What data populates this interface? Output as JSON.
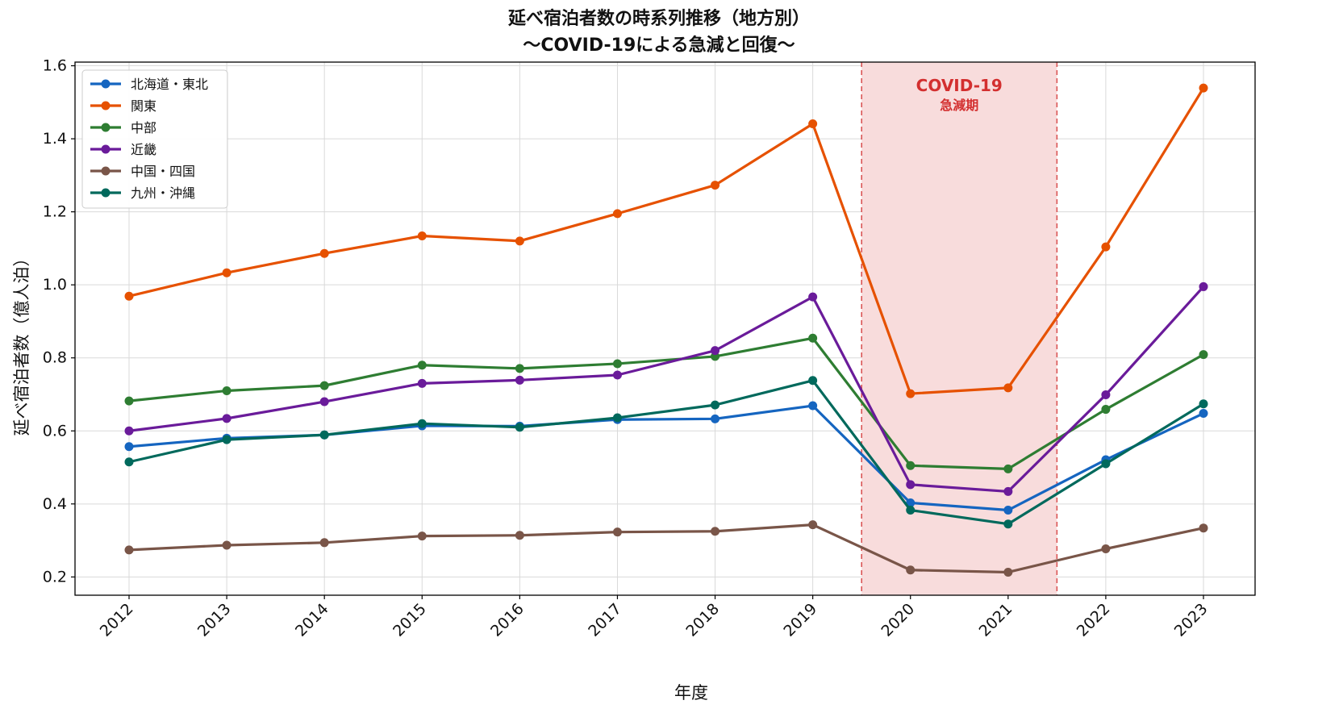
{
  "chart_data": {
    "type": "line",
    "title": "延べ宿泊者数の時系列推移（地方別）",
    "subtitle": "〜COVID-19による急減と回復〜",
    "xlabel": "年度",
    "ylabel": "延べ宿泊者数（億人泊）",
    "categories": [
      "2012",
      "2013",
      "2014",
      "2015",
      "2016",
      "2017",
      "2018",
      "2019",
      "2020",
      "2021",
      "2022",
      "2023"
    ],
    "ylim": [
      0.15,
      1.61
    ],
    "yticks": [
      0.2,
      0.4,
      0.6,
      0.8,
      1.0,
      1.2,
      1.4,
      1.6
    ],
    "ytick_labels": [
      "0.2",
      "0.4",
      "0.6",
      "0.8",
      "1.0",
      "1.2",
      "1.4",
      "1.6"
    ],
    "grid": true,
    "legend_position": "top-left",
    "series": [
      {
        "name": "北海道・東北",
        "color": "#1565c0",
        "values": [
          0.557,
          0.58,
          0.589,
          0.614,
          0.613,
          0.631,
          0.633,
          0.669,
          0.403,
          0.383,
          0.521,
          0.648
        ]
      },
      {
        "name": "関東",
        "color": "#e65100",
        "values": [
          0.969,
          1.033,
          1.086,
          1.134,
          1.12,
          1.195,
          1.273,
          1.441,
          0.702,
          0.718,
          1.104,
          1.539
        ]
      },
      {
        "name": "中部",
        "color": "#2e7d32",
        "values": [
          0.682,
          0.71,
          0.724,
          0.78,
          0.771,
          0.784,
          0.804,
          0.854,
          0.505,
          0.496,
          0.659,
          0.809
        ]
      },
      {
        "name": "近畿",
        "color": "#6a1b9a",
        "values": [
          0.6,
          0.634,
          0.68,
          0.73,
          0.739,
          0.753,
          0.82,
          0.967,
          0.453,
          0.434,
          0.699,
          0.995
        ]
      },
      {
        "name": "中国・四国",
        "color": "#795548",
        "values": [
          0.274,
          0.287,
          0.294,
          0.312,
          0.314,
          0.323,
          0.325,
          0.343,
          0.219,
          0.213,
          0.277,
          0.334
        ]
      },
      {
        "name": "九州・沖縄",
        "color": "#00695c",
        "values": [
          0.515,
          0.576,
          0.589,
          0.62,
          0.61,
          0.636,
          0.671,
          0.738,
          0.383,
          0.345,
          0.51,
          0.674
        ]
      }
    ],
    "annotation": {
      "label_line1": "COVID-19",
      "label_line2": "急減期",
      "color": "#d32f2f",
      "fill": "#f8dcdc",
      "span": [
        "2019.5",
        "2021.5"
      ]
    }
  }
}
